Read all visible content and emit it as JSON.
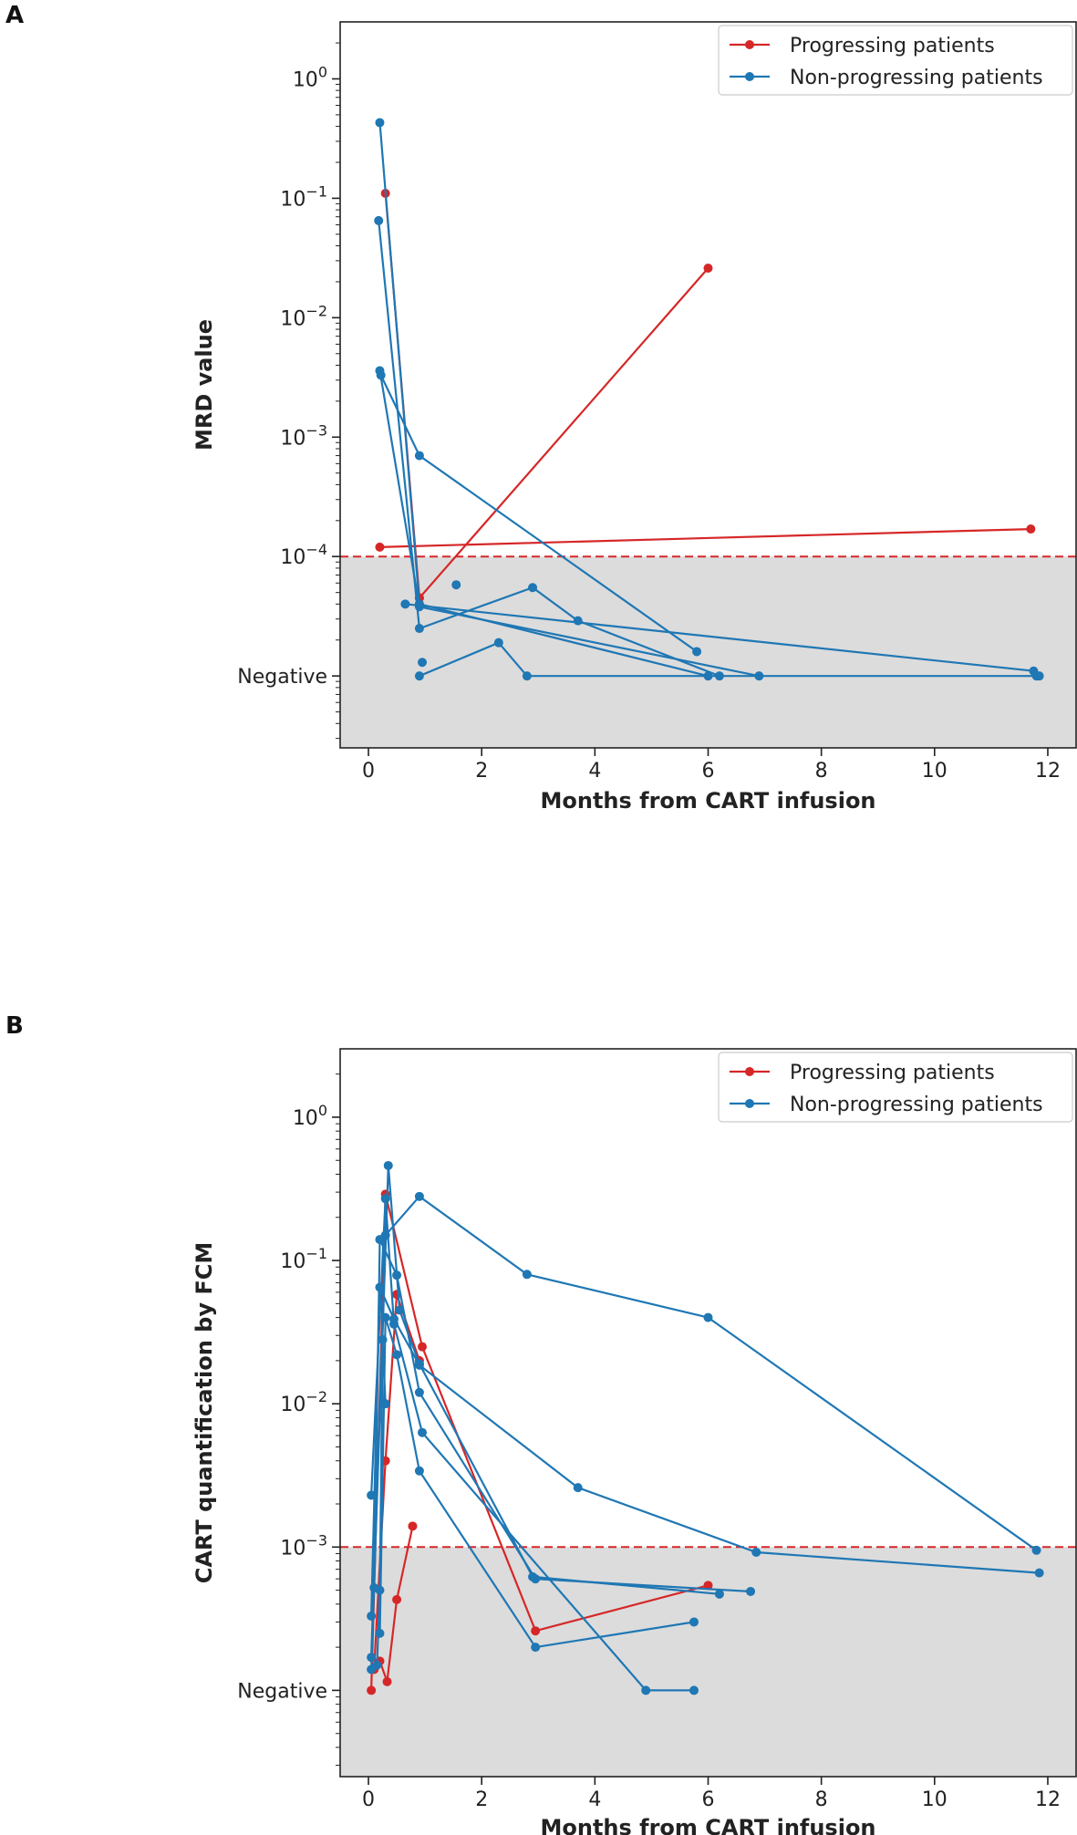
{
  "panels": [
    {
      "letter": "A"
    },
    {
      "letter": "B"
    }
  ],
  "chart_data": [
    {
      "type": "line",
      "ylabel": "MRD value",
      "xlabel": "Months from CART infusion",
      "yscale": "log",
      "xlim": [
        -0.5,
        12.5
      ],
      "ylim": [
        2.5e-06,
        3
      ],
      "negative_value": 1e-05,
      "threshold": 0.0001,
      "shaded_below": 0.0001,
      "xticks": [
        0,
        2,
        4,
        6,
        8,
        10,
        12
      ],
      "xtick_labels": [
        "0",
        "2",
        "4",
        "6",
        "8",
        "10",
        "12"
      ],
      "yticks": [
        1,
        0.1,
        0.01,
        0.001,
        0.0001,
        1e-05
      ],
      "ytick_labels": [
        {
          "base": "10",
          "exp": "0"
        },
        {
          "base": "10",
          "exp": "−1"
        },
        {
          "base": "10",
          "exp": "−2"
        },
        {
          "base": "10",
          "exp": "−3"
        },
        {
          "base": "10",
          "exp": "−4"
        },
        {
          "text": "Negative"
        }
      ],
      "legend": {
        "position": "top-right",
        "entries": [
          {
            "label": "Progressing patients",
            "color": "#d62728"
          },
          {
            "label": "Non-progressing patients",
            "color": "#1f77b4"
          }
        ]
      },
      "colors": {
        "progressing": "#d62728",
        "non_progressing": "#1f77b4",
        "shade": "#dcdcdc"
      },
      "series": [
        {
          "group": "progressing",
          "points": [
            [
              0.3,
              0.11
            ],
            [
              0.9,
              4.5e-05
            ]
          ]
        },
        {
          "group": "progressing",
          "points": [
            [
              0.9,
              4.5e-05
            ],
            [
              6.0,
              0.026
            ]
          ]
        },
        {
          "group": "progressing",
          "points": [
            [
              0.2,
              0.00012
            ],
            [
              11.7,
              0.00017
            ]
          ]
        },
        {
          "group": "non_progressing",
          "points": [
            [
              0.2,
              0.43
            ],
            [
              0.9,
              4e-05
            ],
            [
              6.0,
              1e-05
            ]
          ]
        },
        {
          "group": "non_progressing",
          "points": [
            [
              0.18,
              0.065
            ],
            [
              0.9,
              2.5e-05
            ],
            [
              2.9,
              5.5e-05
            ],
            [
              3.7,
              2.9e-05
            ],
            [
              6.2,
              1e-05
            ]
          ]
        },
        {
          "group": "non_progressing",
          "points": [
            [
              0.2,
              0.0036
            ],
            [
              0.9,
              3.8e-05
            ],
            [
              6.9,
              1e-05
            ]
          ]
        },
        {
          "group": "non_progressing",
          "points": [
            [
              0.22,
              0.0033
            ],
            [
              0.9,
              0.0007
            ],
            [
              5.8,
              1.6e-05
            ]
          ]
        },
        {
          "group": "non_progressing",
          "points": [
            [
              0.65,
              4e-05
            ],
            [
              11.75,
              1.1e-05
            ],
            [
              11.85,
              1e-05
            ]
          ]
        },
        {
          "group": "non_progressing",
          "points": [
            [
              0.9,
              1e-05
            ],
            [
              2.3,
              1.9e-05
            ],
            [
              2.8,
              1e-05
            ],
            [
              11.8,
              1e-05
            ]
          ]
        },
        {
          "group": "non_progressing",
          "points": [
            [
              1.55,
              5.8e-05
            ]
          ]
        },
        {
          "group": "non_progressing",
          "points": [
            [
              0.95,
              1.3e-05
            ]
          ]
        }
      ]
    },
    {
      "type": "line",
      "ylabel": "CART quantification by FCM",
      "xlabel": "Months from CART infusion",
      "yscale": "log",
      "xlim": [
        -0.5,
        12.5
      ],
      "ylim": [
        2.5e-05,
        3
      ],
      "negative_value": 0.0001,
      "threshold": 0.001,
      "shaded_below": 0.001,
      "xticks": [
        0,
        2,
        4,
        6,
        8,
        10,
        12
      ],
      "xtick_labels": [
        "0",
        "2",
        "4",
        "6",
        "8",
        "10",
        "12"
      ],
      "yticks": [
        1,
        0.1,
        0.01,
        0.001,
        0.0001
      ],
      "ytick_labels": [
        {
          "base": "10",
          "exp": "0"
        },
        {
          "base": "10",
          "exp": "−1"
        },
        {
          "base": "10",
          "exp": "−2"
        },
        {
          "base": "10",
          "exp": "−3"
        },
        {
          "text": "Negative"
        }
      ],
      "legend": {
        "position": "top-right",
        "entries": [
          {
            "label": "Progressing patients",
            "color": "#d62728"
          },
          {
            "label": "Non-progressing patients",
            "color": "#1f77b4"
          }
        ]
      },
      "colors": {
        "progressing": "#d62728",
        "non_progressing": "#1f77b4",
        "shade": "#dcdcdc"
      },
      "series": [
        {
          "group": "progressing",
          "points": [
            [
              0.05,
              0.0001
            ],
            [
              0.3,
              0.29
            ],
            [
              0.95,
              0.025
            ],
            [
              2.95,
              0.00026
            ],
            [
              6.0,
              0.00054
            ]
          ]
        },
        {
          "group": "progressing",
          "points": [
            [
              0.1,
              0.00014
            ],
            [
              0.3,
              0.004
            ],
            [
              0.5,
              0.058
            ],
            [
              0.9,
              0.02
            ]
          ]
        },
        {
          "group": "progressing",
          "points": [
            [
              0.2,
              0.00016
            ],
            [
              0.33,
              0.000115
            ],
            [
              0.5,
              0.00043
            ],
            [
              0.78,
              0.0014
            ]
          ]
        },
        {
          "group": "non_progressing",
          "points": [
            [
              0.05,
              0.00014
            ],
            [
              0.35,
              0.46
            ],
            [
              0.55,
              0.045
            ],
            [
              0.9,
              0.019
            ],
            [
              2.9,
              0.00062
            ],
            [
              6.2,
              0.00047
            ]
          ]
        },
        {
          "group": "non_progressing",
          "points": [
            [
              0.05,
              0.00017
            ],
            [
              0.3,
              0.15
            ],
            [
              0.9,
              0.28
            ],
            [
              2.8,
              0.08
            ],
            [
              6.0,
              0.04
            ],
            [
              11.8,
              0.00095
            ]
          ]
        },
        {
          "group": "non_progressing",
          "points": [
            [
              0.1,
              0.00052
            ],
            [
              0.2,
              0.14
            ],
            [
              0.5,
              0.079
            ],
            [
              0.9,
              0.012
            ],
            [
              2.95,
              0.0006
            ],
            [
              6.75,
              0.00049
            ]
          ]
        },
        {
          "group": "non_progressing",
          "points": [
            [
              0.05,
              0.0023
            ],
            [
              0.3,
              0.27
            ],
            [
              0.45,
              0.036
            ],
            [
              0.95,
              0.0063
            ],
            [
              4.9,
              0.0001
            ],
            [
              5.75,
              0.0001
            ]
          ]
        },
        {
          "group": "non_progressing",
          "points": [
            [
              0.05,
              0.00033
            ],
            [
              0.2,
              0.065
            ],
            [
              0.45,
              0.039
            ],
            [
              0.9,
              0.0186
            ],
            [
              3.7,
              0.0026
            ],
            [
              6.85,
              0.00092
            ],
            [
              11.85,
              0.00066
            ]
          ]
        },
        {
          "group": "non_progressing",
          "points": [
            [
              0.2,
              0.00025
            ],
            [
              0.3,
              0.04
            ],
            [
              0.5,
              0.022
            ],
            [
              0.9,
              0.0034
            ],
            [
              2.95,
              0.0002
            ],
            [
              5.75,
              0.0003
            ]
          ]
        },
        {
          "group": "non_progressing",
          "points": [
            [
              0.15,
              0.00015
            ],
            [
              0.2,
              0.0005
            ],
            [
              0.25,
              0.028
            ],
            [
              0.3,
              0.01
            ]
          ]
        }
      ]
    }
  ]
}
